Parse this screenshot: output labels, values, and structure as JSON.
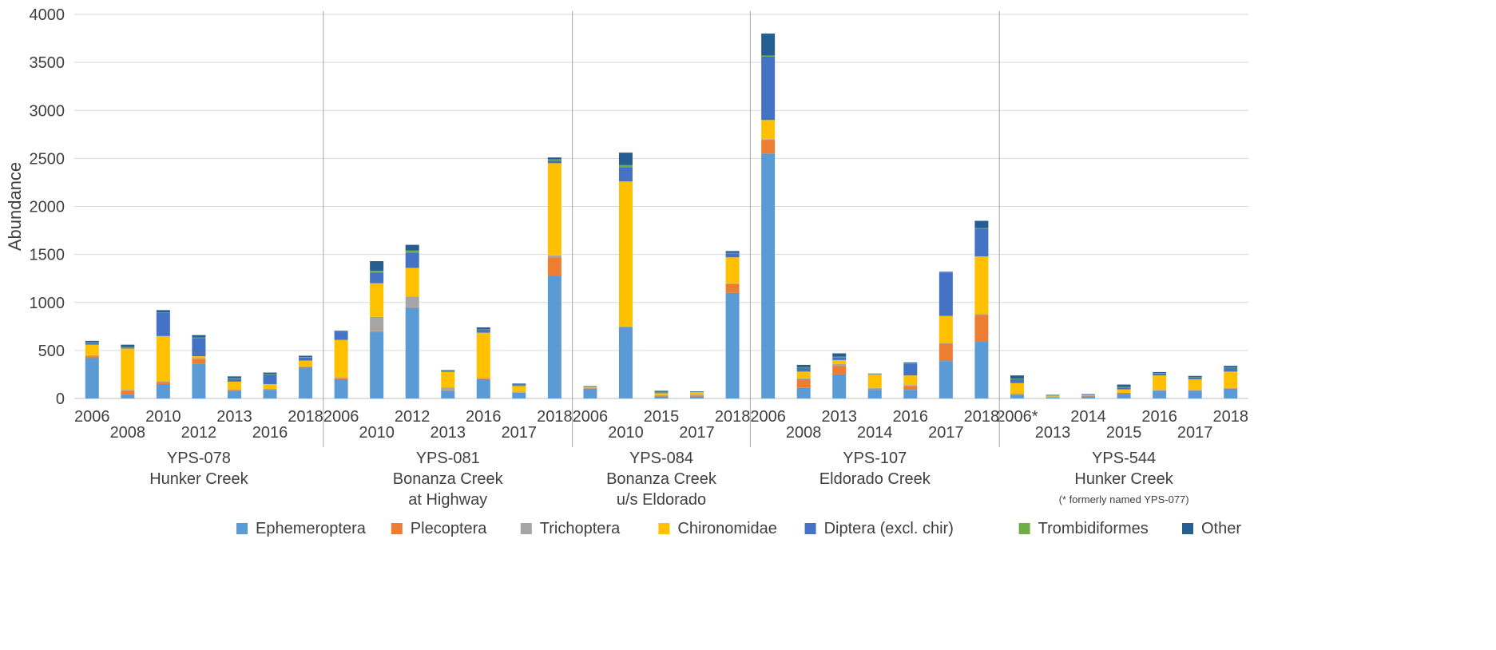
{
  "chart_data": {
    "type": "bar",
    "stacked": true,
    "ylabel": "Abundance",
    "ylim": [
      0,
      4000
    ],
    "yticks": [
      0,
      500,
      1000,
      1500,
      2000,
      2500,
      3000,
      3500,
      4000
    ],
    "grid": true,
    "legend_position": "bottom",
    "series": [
      {
        "name": "Ephemeroptera",
        "color": "#5B9BD5"
      },
      {
        "name": "Plecoptera",
        "color": "#ED7D31"
      },
      {
        "name": "Trichoptera",
        "color": "#A5A5A5"
      },
      {
        "name": "Chironomidae",
        "color": "#FFC000"
      },
      {
        "name": "Diptera (excl. chir)",
        "color": "#4472C4"
      },
      {
        "name": "Trombidiformes",
        "color": "#70AD47"
      },
      {
        "name": "Other",
        "color": "#255E91"
      }
    ],
    "groups": [
      {
        "label_lines": [
          "YPS-078",
          "Hunker Creek"
        ],
        "bars": [
          {
            "year": "2006",
            "values": [
              420,
              20,
              10,
              110,
              20,
              5,
              15
            ]
          },
          {
            "year": "2008",
            "values": [
              40,
              40,
              10,
              430,
              10,
              5,
              25
            ]
          },
          {
            "year": "2010",
            "values": [
              150,
              20,
              10,
              470,
              240,
              5,
              25
            ]
          },
          {
            "year": "2012",
            "values": [
              360,
              50,
              10,
              20,
              190,
              5,
              25
            ]
          },
          {
            "year": "2013",
            "values": [
              80,
              10,
              5,
              80,
              30,
              5,
              20
            ]
          },
          {
            "year": "2016",
            "values": [
              90,
              5,
              5,
              50,
              100,
              5,
              15
            ]
          },
          {
            "year": "2018",
            "values": [
              320,
              10,
              5,
              60,
              30,
              5,
              15
            ]
          }
        ]
      },
      {
        "label_lines": [
          "YPS-081",
          "Bonanza Creek",
          "at Highway"
        ],
        "bars": [
          {
            "year": "2006",
            "values": [
              200,
              10,
              10,
              390,
              80,
              5,
              10
            ]
          },
          {
            "year": "2010",
            "values": [
              690,
              10,
              150,
              350,
              110,
              20,
              100
            ]
          },
          {
            "year": "2012",
            "values": [
              940,
              10,
              110,
              300,
              160,
              20,
              60
            ]
          },
          {
            "year": "2013",
            "values": [
              80,
              5,
              30,
              160,
              5,
              5,
              10
            ]
          },
          {
            "year": "2016",
            "values": [
              200,
              5,
              10,
              470,
              30,
              5,
              20
            ]
          },
          {
            "year": "2017",
            "values": [
              60,
              5,
              5,
              60,
              10,
              5,
              10
            ]
          },
          {
            "year": "2018",
            "values": [
              1280,
              190,
              20,
              960,
              30,
              10,
              20
            ]
          }
        ]
      },
      {
        "label_lines": [
          "YPS-084",
          "Bonanza Creek",
          "u/s Eldorado"
        ],
        "bars": [
          {
            "year": "2006",
            "values": [
              100,
              5,
              5,
              10,
              5,
              3,
              2
            ]
          },
          {
            "year": "2010",
            "values": [
              740,
              5,
              5,
              1510,
              150,
              20,
              130
            ]
          },
          {
            "year": "2015",
            "values": [
              20,
              5,
              10,
              20,
              10,
              5,
              10
            ]
          },
          {
            "year": "2017",
            "values": [
              20,
              5,
              15,
              25,
              3,
              2,
              5
            ]
          },
          {
            "year": "2018",
            "values": [
              1100,
              90,
              10,
              270,
              40,
              5,
              20
            ]
          }
        ]
      },
      {
        "label_lines": [
          "YPS-107",
          "Eldorado Creek"
        ],
        "bars": [
          {
            "year": "2006",
            "values": [
              2550,
              140,
              10,
              200,
              660,
              10,
              230
            ]
          },
          {
            "year": "2008",
            "values": [
              110,
              90,
              10,
              70,
              40,
              5,
              25
            ]
          },
          {
            "year": "2013",
            "values": [
              250,
              90,
              20,
              40,
              30,
              5,
              35
            ]
          },
          {
            "year": "2014",
            "values": [
              90,
              10,
              10,
              140,
              5,
              3,
              2
            ]
          },
          {
            "year": "2016",
            "values": [
              90,
              40,
              10,
              100,
              120,
              5,
              10
            ]
          },
          {
            "year": "2017",
            "values": [
              390,
              180,
              10,
              280,
              450,
              5,
              5
            ]
          },
          {
            "year": "2018",
            "values": [
              590,
              280,
              10,
              600,
              290,
              5,
              75
            ]
          }
        ]
      },
      {
        "label_lines": [
          "YPS-544",
          "Hunker Creek"
        ],
        "note": "(* formerly named YPS-077)",
        "bars": [
          {
            "year": "2006*",
            "values": [
              40,
              5,
              5,
              110,
              40,
              5,
              35
            ]
          },
          {
            "year": "2013",
            "values": [
              10,
              5,
              5,
              10,
              5,
              3,
              2
            ]
          },
          {
            "year": "2014",
            "values": [
              20,
              5,
              5,
              5,
              5,
              0,
              5
            ]
          },
          {
            "year": "2015",
            "values": [
              50,
              10,
              5,
              30,
              20,
              5,
              25
            ]
          },
          {
            "year": "2016",
            "values": [
              80,
              5,
              5,
              150,
              20,
              5,
              10
            ]
          },
          {
            "year": "2017",
            "values": [
              80,
              5,
              5,
              110,
              20,
              5,
              10
            ]
          },
          {
            "year": "2018",
            "values": [
              100,
              5,
              5,
              170,
              40,
              5,
              15
            ]
          }
        ]
      }
    ]
  }
}
